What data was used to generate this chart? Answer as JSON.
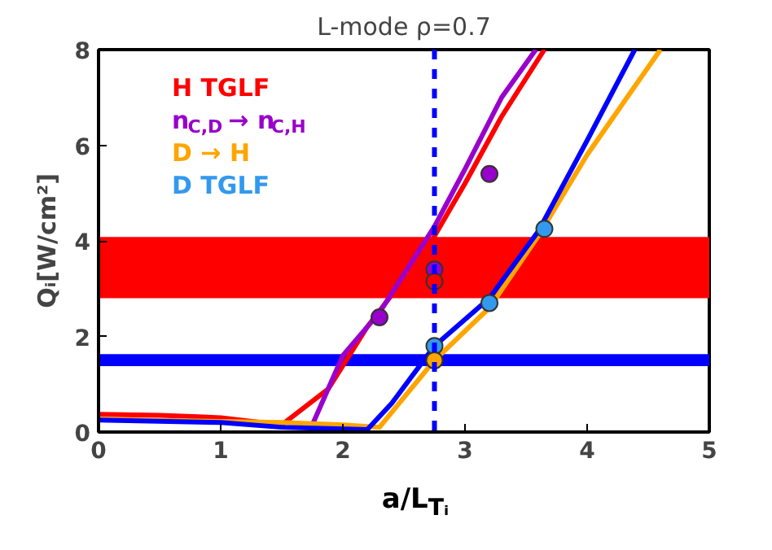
{
  "chart_data": {
    "type": "line",
    "title": "L-mode ρ=0.7",
    "xlabel": "a/L$_{Tᵢ}$",
    "ylabel": "Qᵢ[W/cm²]",
    "xlim": [
      0,
      5
    ],
    "ylim": [
      0,
      8
    ],
    "xticks": [
      0,
      1,
      2,
      3,
      4,
      5
    ],
    "yticks": [
      0,
      2,
      4,
      6,
      8
    ],
    "grid": false,
    "legend": "top left",
    "line_style": "solid",
    "series": [
      {
        "name": "H TGLF",
        "color": "#ff0000",
        "x": [
          0,
          0.5,
          1,
          1.5,
          1.88,
          2.2,
          2.5,
          2.75,
          3.0,
          3.3,
          3.65
        ],
        "values": [
          0.37,
          0.35,
          0.3,
          0.15,
          0.9,
          2.2,
          3.2,
          4.1,
          5.2,
          6.6,
          8
        ]
      },
      {
        "name": "n$_{C,D}$ → n$_{C,H}$",
        "color": "#9900cc",
        "x": [
          1.75,
          2.0,
          2.3,
          2.75,
          3.0,
          3.3,
          3.58
        ],
        "values": [
          0.15,
          1.6,
          2.5,
          4.3,
          5.5,
          7.0,
          8
        ]
      },
      {
        "name": "D → H",
        "color": "#ffa500",
        "x": [
          0,
          1,
          1.5,
          2.0,
          2.3,
          2.75,
          3.2,
          3.6,
          4.0,
          4.6
        ],
        "values": [
          0.27,
          0.22,
          0.2,
          0.15,
          0.1,
          1.5,
          2.6,
          4.1,
          5.8,
          8
        ]
      },
      {
        "color": "#0000ff",
        "x": [
          0,
          1,
          1.5,
          2.2,
          2.4,
          2.75,
          3.2,
          3.6,
          4.0,
          4.39
        ],
        "values": [
          0.25,
          0.2,
          0.1,
          0.05,
          0.6,
          1.8,
          2.8,
          4.2,
          6.1,
          8
        ]
      },
      {
        "type": "scatter",
        "marker": "circle",
        "color": "#9900cc",
        "x": [
          2.3,
          2.75,
          3.2
        ],
        "values": [
          2.4,
          3.4,
          5.4
        ]
      },
      {
        "type": "scatter",
        "marker": "circle",
        "color": "#ff0000",
        "x": [
          2.75
        ],
        "values": [
          3.15
        ]
      },
      {
        "name": "D TGLF",
        "type": "scatter",
        "marker": "circle",
        "color": "#3399ee",
        "x": [
          2.75,
          3.2,
          3.65
        ],
        "values": [
          1.8,
          2.7,
          4.25
        ]
      },
      {
        "type": "scatter",
        "marker": "circle",
        "color": "#ffa500",
        "x": [
          2.75
        ],
        "values": [
          1.5
        ]
      }
    ],
    "ref_lines": [
      {
        "axis": "x",
        "value": 2.75,
        "color": "#0000ff",
        "line_style": "dashed"
      }
    ],
    "bands": [
      {
        "axis": "y",
        "from": 2.8,
        "to": 4.08,
        "color": "#ff0000"
      },
      {
        "axis": "y",
        "from": 1.38,
        "to": 1.63,
        "color": "#0000ff"
      }
    ]
  }
}
